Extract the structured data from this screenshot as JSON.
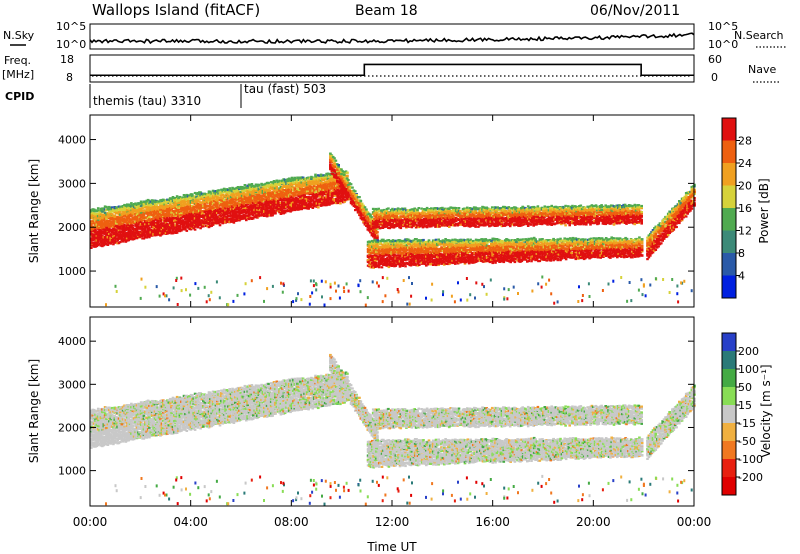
{
  "header": {
    "title": "Wallops Island (fitACF)",
    "beam": "Beam 18",
    "date": "06/Nov/2011"
  },
  "panels": {
    "nsky_label": "N.Sky",
    "nsearch_label": "N.Search",
    "freq_label": "Freq.",
    "freq_unit": "[MHz]",
    "nave_label": "Nave",
    "cpid_label": "CPID",
    "left_ticks_top": [
      "10^5",
      "10^0"
    ],
    "right_ticks_top": [
      "10^5",
      "10^0"
    ],
    "freq_ticks": [
      "18",
      "8"
    ],
    "nave_ticks": [
      "60",
      "0"
    ],
    "cpid_segments": [
      "themis (tau) 3310",
      "tau (fast) 503"
    ]
  },
  "chart_data": {
    "type": "heatmap",
    "x": {
      "label": "Time UT",
      "ticks": [
        "00:00",
        "04:00",
        "08:00",
        "12:00",
        "16:00",
        "20:00",
        "00:00"
      ],
      "hours": [
        0,
        4,
        8,
        12,
        16,
        20,
        24
      ],
      "range": [
        0,
        24
      ]
    },
    "y": {
      "label": "Slant Range [km]",
      "ticks": [
        1000,
        2000,
        3000,
        4000
      ],
      "range": [
        180,
        4560
      ]
    },
    "power": {
      "colorbar_label": "Power [dB]",
      "colorbar_ticks": [
        4,
        8,
        12,
        16,
        20,
        24,
        28
      ],
      "colors": [
        "#0020e0",
        "#2a5aa8",
        "#3c8a78",
        "#50aa50",
        "#d6d23a",
        "#f0a020",
        "#ee6010",
        "#e01010"
      ],
      "range": [
        0,
        32
      ]
    },
    "velocity": {
      "colorbar_label": "Velocity [m s⁻¹]",
      "colorbar_ticks": [
        "200",
        "100",
        "50",
        "15",
        "-15",
        "-50",
        "-100",
        "-200"
      ],
      "colors": [
        "#2840c8",
        "#2a7a78",
        "#44aa44",
        "#88dd55",
        "#c8c8c8",
        "#f0b040",
        "#f07820",
        "#e82010",
        "#e00000"
      ]
    },
    "echo_bands": [
      {
        "t0": 0.0,
        "t1": 10.2,
        "r0": 1550,
        "r1": 2400,
        "r_end0": 2600,
        "r_end1": 3300
      },
      {
        "t0": 9.5,
        "t1": 11.4,
        "r0": 3300,
        "r1": 3700,
        "r_end0": 1600,
        "r_end1": 2000
      },
      {
        "t0": 11.0,
        "t1": 21.9,
        "r0": 1100,
        "r1": 1700,
        "r_end0": 1350,
        "r_end1": 1750
      },
      {
        "t0": 11.2,
        "t1": 21.9,
        "r0": 2000,
        "r1": 2400,
        "r_end0": 2100,
        "r_end1": 2500
      },
      {
        "t0": 22.1,
        "t1": 24.0,
        "r0": 1300,
        "r1": 1800,
        "r_end0": 2500,
        "r_end1": 3000
      }
    ],
    "frequency_MHz": {
      "t": [
        0,
        6,
        10.9,
        21.9,
        24
      ],
      "values": [
        10.5,
        10.5,
        14.5,
        10.5,
        10.5
      ]
    },
    "cpid_change_hour": 6
  }
}
